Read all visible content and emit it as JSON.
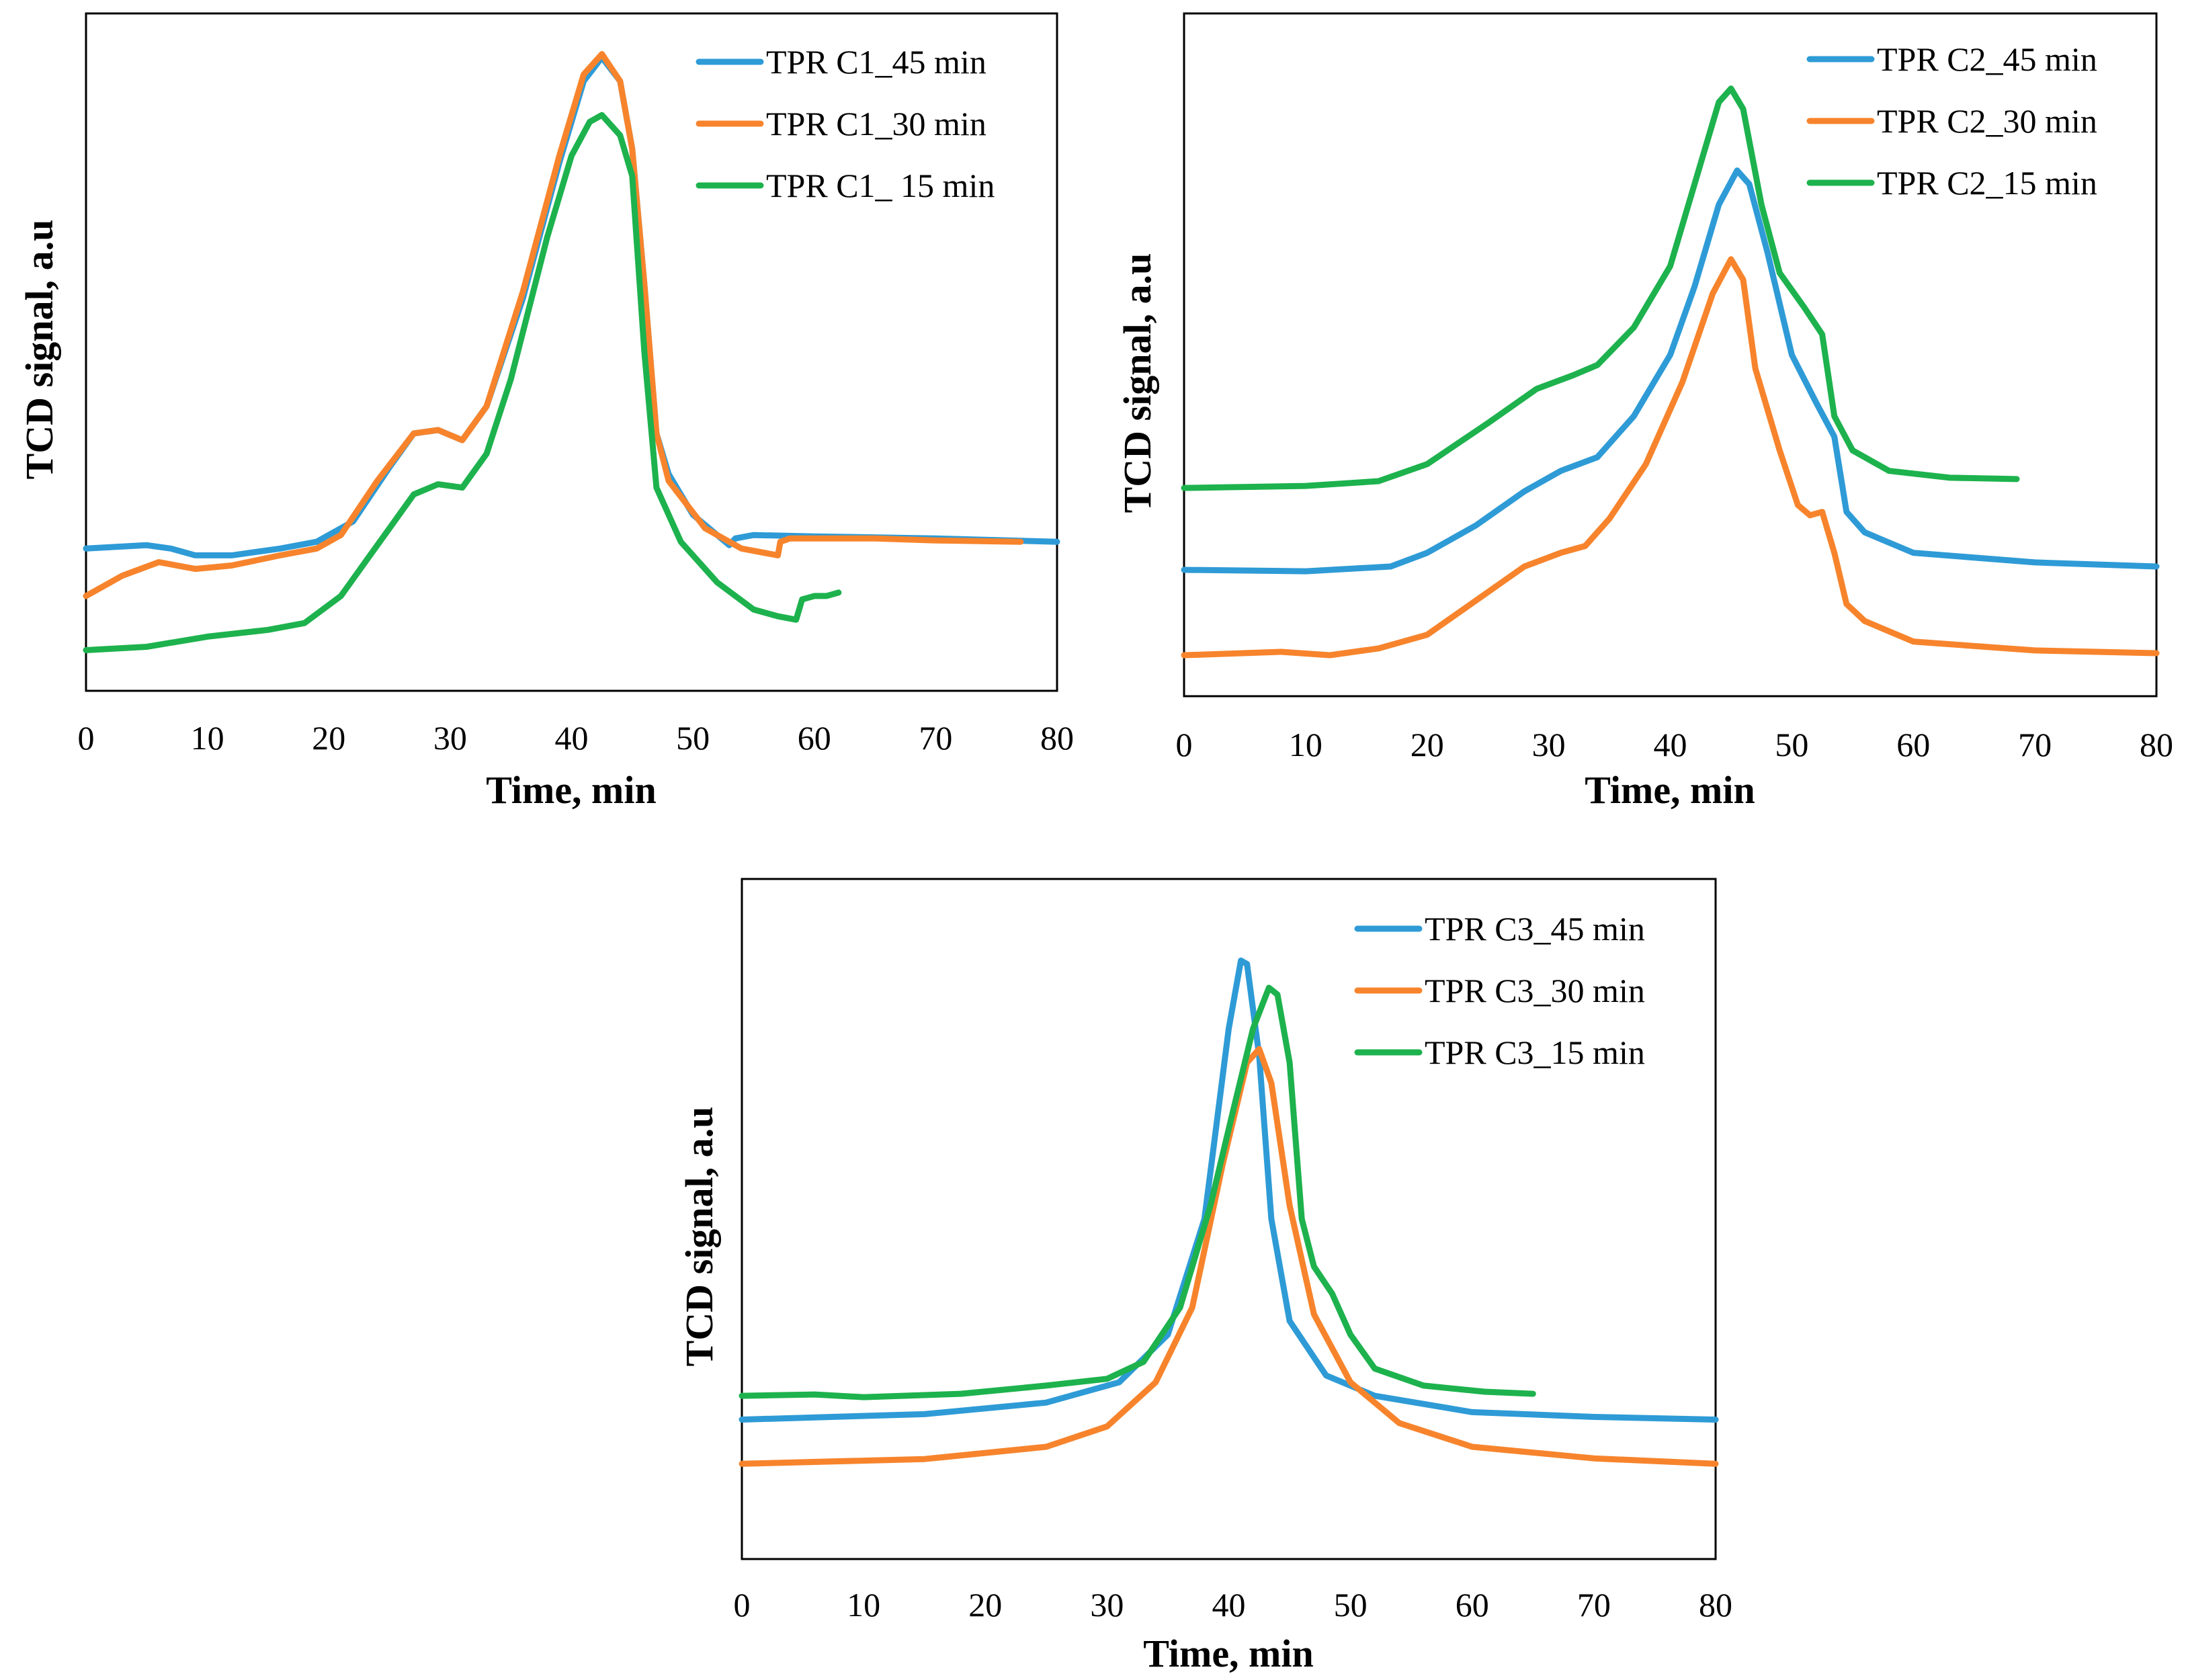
{
  "colors": {
    "blue": "#2e9bd6",
    "orange": "#f7842c",
    "green": "#1db24d"
  },
  "chart_data": [
    {
      "type": "line",
      "title": "",
      "xlabel": "Time, min",
      "ylabel": "TCD signal, a.u",
      "xlim": [
        0,
        80
      ],
      "ylim": [
        0,
        1
      ],
      "xticks": [
        0,
        10,
        20,
        30,
        40,
        50,
        60,
        70,
        80
      ],
      "series": [
        {
          "name": "TPR C1_45 min",
          "color": "#2e9bd6",
          "points": [
            [
              0,
              0.21
            ],
            [
              5,
              0.215
            ],
            [
              7,
              0.21
            ],
            [
              9,
              0.2
            ],
            [
              12,
              0.2
            ],
            [
              16,
              0.21
            ],
            [
              19,
              0.22
            ],
            [
              22,
              0.25
            ],
            [
              25,
              0.33
            ],
            [
              27,
              0.38
            ],
            [
              29,
              0.385
            ],
            [
              31,
              0.37
            ],
            [
              33,
              0.42
            ],
            [
              36,
              0.58
            ],
            [
              39,
              0.78
            ],
            [
              41,
              0.9
            ],
            [
              42.5,
              0.935
            ],
            [
              44,
              0.9
            ],
            [
              45,
              0.8
            ],
            [
              46,
              0.6
            ],
            [
              47,
              0.38
            ],
            [
              48,
              0.32
            ],
            [
              50,
              0.26
            ],
            [
              53,
              0.215
            ],
            [
              53.5,
              0.225
            ],
            [
              55,
              0.23
            ],
            [
              60,
              0.228
            ],
            [
              70,
              0.225
            ],
            [
              80,
              0.22
            ]
          ]
        },
        {
          "name": "TPR C1_30 min",
          "color": "#f7842c",
          "points": [
            [
              0,
              0.14
            ],
            [
              3,
              0.17
            ],
            [
              6,
              0.19
            ],
            [
              9,
              0.18
            ],
            [
              12,
              0.185
            ],
            [
              16,
              0.2
            ],
            [
              19,
              0.21
            ],
            [
              21,
              0.23
            ],
            [
              24,
              0.31
            ],
            [
              27,
              0.38
            ],
            [
              29,
              0.385
            ],
            [
              31,
              0.37
            ],
            [
              33,
              0.42
            ],
            [
              36,
              0.59
            ],
            [
              39,
              0.79
            ],
            [
              41,
              0.91
            ],
            [
              42.5,
              0.94
            ],
            [
              44,
              0.9
            ],
            [
              45,
              0.8
            ],
            [
              46,
              0.6
            ],
            [
              47,
              0.38
            ],
            [
              48,
              0.31
            ],
            [
              51,
              0.24
            ],
            [
              54,
              0.21
            ],
            [
              57,
              0.2
            ],
            [
              57.2,
              0.22
            ],
            [
              58,
              0.225
            ],
            [
              65,
              0.225
            ],
            [
              70,
              0.222
            ],
            [
              77,
              0.22
            ]
          ]
        },
        {
          "name": "TPR C1_ 15 min",
          "color": "#1db24d",
          "points": [
            [
              0,
              0.06
            ],
            [
              5,
              0.065
            ],
            [
              10,
              0.08
            ],
            [
              15,
              0.09
            ],
            [
              18,
              0.1
            ],
            [
              21,
              0.14
            ],
            [
              23,
              0.19
            ],
            [
              25,
              0.24
            ],
            [
              27,
              0.29
            ],
            [
              29,
              0.305
            ],
            [
              31,
              0.3
            ],
            [
              33,
              0.35
            ],
            [
              35,
              0.46
            ],
            [
              38,
              0.67
            ],
            [
              40,
              0.79
            ],
            [
              41.5,
              0.84
            ],
            [
              42.5,
              0.85
            ],
            [
              44,
              0.82
            ],
            [
              45,
              0.76
            ],
            [
              46,
              0.5
            ],
            [
              47,
              0.3
            ],
            [
              49,
              0.22
            ],
            [
              52,
              0.16
            ],
            [
              55,
              0.12
            ],
            [
              57,
              0.11
            ],
            [
              58.5,
              0.105
            ],
            [
              59,
              0.135
            ],
            [
              60,
              0.14
            ],
            [
              61,
              0.14
            ],
            [
              62,
              0.145
            ]
          ]
        }
      ],
      "legend": "top-right"
    },
    {
      "type": "line",
      "title": "",
      "xlabel": "Time, min",
      "ylabel": "TCD signal, a.u",
      "xlim": [
        0,
        80
      ],
      "ylim": [
        0,
        1
      ],
      "xticks": [
        0,
        10,
        20,
        30,
        40,
        50,
        60,
        70,
        80
      ],
      "series": [
        {
          "name": "TPR C2_45 min",
          "color": "#2e9bd6",
          "points": [
            [
              0,
              0.185
            ],
            [
              10,
              0.183
            ],
            [
              17,
              0.19
            ],
            [
              20,
              0.21
            ],
            [
              24,
              0.25
            ],
            [
              28,
              0.3
            ],
            [
              31,
              0.33
            ],
            [
              34,
              0.35
            ],
            [
              37,
              0.41
            ],
            [
              40,
              0.5
            ],
            [
              42,
              0.6
            ],
            [
              44,
              0.72
            ],
            [
              45.5,
              0.77
            ],
            [
              46.5,
              0.75
            ],
            [
              48,
              0.65
            ],
            [
              50,
              0.5
            ],
            [
              52,
              0.43
            ],
            [
              53.5,
              0.38
            ],
            [
              54.5,
              0.27
            ],
            [
              56,
              0.24
            ],
            [
              60,
              0.21
            ],
            [
              70,
              0.196
            ],
            [
              80,
              0.19
            ]
          ]
        },
        {
          "name": "TPR C2_30 min",
          "color": "#f7842c",
          "points": [
            [
              0,
              0.06
            ],
            [
              8,
              0.065
            ],
            [
              12,
              0.06
            ],
            [
              16,
              0.07
            ],
            [
              20,
              0.09
            ],
            [
              24,
              0.14
            ],
            [
              28,
              0.19
            ],
            [
              31,
              0.21
            ],
            [
              33,
              0.22
            ],
            [
              35,
              0.26
            ],
            [
              38,
              0.34
            ],
            [
              41,
              0.46
            ],
            [
              43.5,
              0.59
            ],
            [
              45,
              0.64
            ],
            [
              46,
              0.61
            ],
            [
              47,
              0.48
            ],
            [
              49,
              0.36
            ],
            [
              50.5,
              0.28
            ],
            [
              51.5,
              0.265
            ],
            [
              52.5,
              0.27
            ],
            [
              53.5,
              0.21
            ],
            [
              54.5,
              0.135
            ],
            [
              56,
              0.11
            ],
            [
              60,
              0.08
            ],
            [
              70,
              0.067
            ],
            [
              80,
              0.063
            ]
          ]
        },
        {
          "name": "TPR C2_15 min",
          "color": "#1db24d",
          "points": [
            [
              0,
              0.305
            ],
            [
              10,
              0.308
            ],
            [
              16,
              0.315
            ],
            [
              20,
              0.34
            ],
            [
              25,
              0.4
            ],
            [
              29,
              0.45
            ],
            [
              32,
              0.47
            ],
            [
              34,
              0.485
            ],
            [
              37,
              0.54
            ],
            [
              40,
              0.63
            ],
            [
              42.5,
              0.78
            ],
            [
              44,
              0.87
            ],
            [
              45,
              0.89
            ],
            [
              46,
              0.86
            ],
            [
              47.5,
              0.72
            ],
            [
              49,
              0.62
            ],
            [
              51,
              0.57
            ],
            [
              52.5,
              0.53
            ],
            [
              53.5,
              0.41
            ],
            [
              55,
              0.36
            ],
            [
              58,
              0.33
            ],
            [
              63,
              0.32
            ],
            [
              68.5,
              0.318
            ]
          ]
        }
      ],
      "legend": "top-right"
    },
    {
      "type": "line",
      "title": "",
      "xlabel": "Time, min",
      "ylabel": "TCD signal, a.u",
      "xlim": [
        0,
        80
      ],
      "ylim": [
        0,
        1
      ],
      "xticks": [
        0,
        10,
        20,
        30,
        40,
        50,
        60,
        70,
        80
      ],
      "series": [
        {
          "name": "TPR C3_45 min",
          "color": "#2e9bd6",
          "points": [
            [
              0,
              0.205
            ],
            [
              15,
              0.213
            ],
            [
              25,
              0.23
            ],
            [
              31,
              0.26
            ],
            [
              35,
              0.33
            ],
            [
              38,
              0.5
            ],
            [
              40,
              0.78
            ],
            [
              41,
              0.88
            ],
            [
              41.5,
              0.875
            ],
            [
              42.5,
              0.74
            ],
            [
              43.5,
              0.5
            ],
            [
              45,
              0.35
            ],
            [
              48,
              0.27
            ],
            [
              52,
              0.24
            ],
            [
              60,
              0.216
            ],
            [
              70,
              0.209
            ],
            [
              80,
              0.205
            ]
          ]
        },
        {
          "name": "TPR C3_30 min",
          "color": "#f7842c",
          "points": [
            [
              0,
              0.14
            ],
            [
              15,
              0.147
            ],
            [
              25,
              0.165
            ],
            [
              30,
              0.195
            ],
            [
              34,
              0.26
            ],
            [
              37,
              0.37
            ],
            [
              39.5,
              0.58
            ],
            [
              41.5,
              0.73
            ],
            [
              42.5,
              0.75
            ],
            [
              43.5,
              0.7
            ],
            [
              45,
              0.52
            ],
            [
              47,
              0.36
            ],
            [
              50,
              0.26
            ],
            [
              54,
              0.2
            ],
            [
              60,
              0.165
            ],
            [
              70,
              0.148
            ],
            [
              80,
              0.14
            ]
          ]
        },
        {
          "name": "TPR C3_15 min",
          "color": "#1db24d",
          "points": [
            [
              0,
              0.24
            ],
            [
              6,
              0.242
            ],
            [
              10,
              0.238
            ],
            [
              18,
              0.243
            ],
            [
              25,
              0.255
            ],
            [
              30,
              0.265
            ],
            [
              33,
              0.29
            ],
            [
              36,
              0.37
            ],
            [
              38.5,
              0.52
            ],
            [
              40.5,
              0.67
            ],
            [
              42,
              0.78
            ],
            [
              43.3,
              0.84
            ],
            [
              44,
              0.83
            ],
            [
              45,
              0.73
            ],
            [
              46,
              0.5
            ],
            [
              47,
              0.43
            ],
            [
              48.5,
              0.39
            ],
            [
              50,
              0.33
            ],
            [
              52,
              0.28
            ],
            [
              56,
              0.255
            ],
            [
              61,
              0.246
            ],
            [
              65,
              0.243
            ]
          ]
        }
      ],
      "legend": "top-right"
    }
  ]
}
